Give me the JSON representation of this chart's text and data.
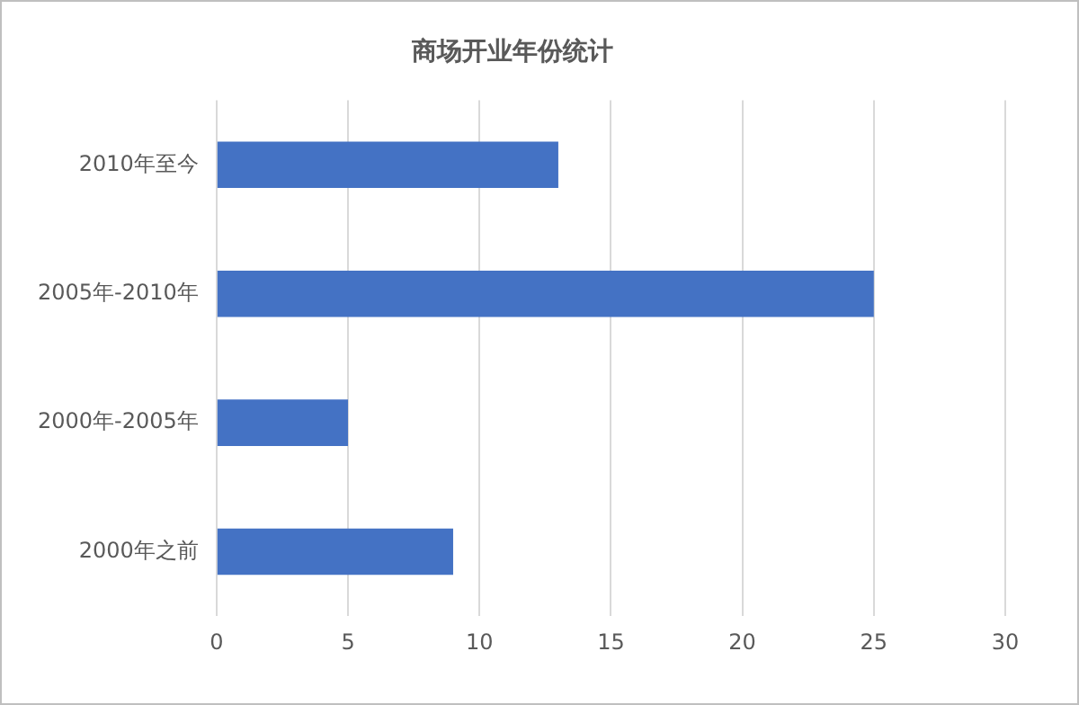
{
  "chart_data": {
    "type": "bar",
    "orientation": "horizontal",
    "title": "商场开业年份统计",
    "categories": [
      "2010年至今",
      "2005年-2010年",
      "2000年-2005年",
      "2000年之前"
    ],
    "values": [
      13,
      25,
      5,
      9
    ],
    "color": "#4472c4",
    "xlim": [
      0,
      30
    ],
    "xticks": [
      0,
      5,
      10,
      15,
      20,
      25,
      30
    ],
    "grid": "x",
    "legend": false
  }
}
